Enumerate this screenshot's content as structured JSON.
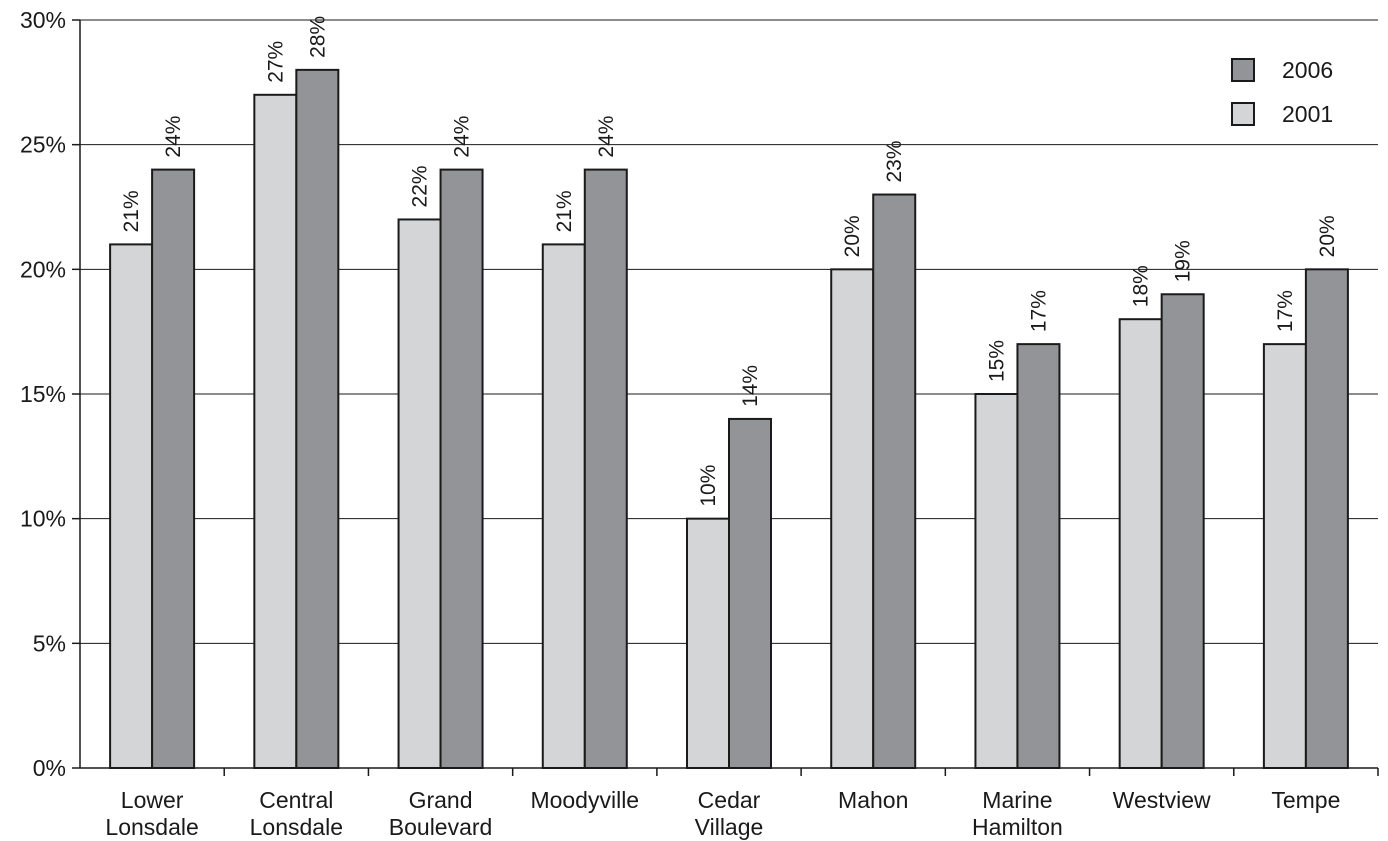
{
  "chart_data": {
    "type": "bar",
    "categories": [
      [
        "Lower",
        "Lonsdale"
      ],
      [
        "Central",
        "Lonsdale"
      ],
      [
        "Grand",
        "Boulevard"
      ],
      [
        "Moodyville"
      ],
      [
        "Cedar",
        "Village"
      ],
      [
        "Mahon"
      ],
      [
        "Marine",
        "Hamilton"
      ],
      [
        "Westview"
      ],
      [
        "Tempe"
      ]
    ],
    "series": [
      {
        "name": "2001",
        "values": [
          21,
          27,
          22,
          21,
          10,
          20,
          15,
          18,
          17
        ],
        "color": "#d4d5d7"
      },
      {
        "name": "2006",
        "values": [
          24,
          28,
          24,
          24,
          14,
          23,
          17,
          19,
          20
        ],
        "color": "#939497"
      }
    ],
    "data_labels": [
      [
        "21%",
        "27%",
        "22%",
        "21%",
        "10%",
        "20%",
        "15%",
        "18%",
        "17%"
      ],
      [
        "24%",
        "28%",
        "24%",
        "24%",
        "14%",
        "23%",
        "17%",
        "19%",
        "20%"
      ]
    ],
    "y_ticks": [
      "0%",
      "5%",
      "10%",
      "15%",
      "20%",
      "25%",
      "30%"
    ],
    "ylim": [
      0,
      30
    ],
    "y_step": 5,
    "grid": true,
    "legend": {
      "placement": "top-right",
      "items": [
        {
          "label": "2006",
          "color": "#939497"
        },
        {
          "label": "2001",
          "color": "#d4d5d7"
        }
      ]
    },
    "title": "",
    "xlabel": "",
    "ylabel": ""
  }
}
